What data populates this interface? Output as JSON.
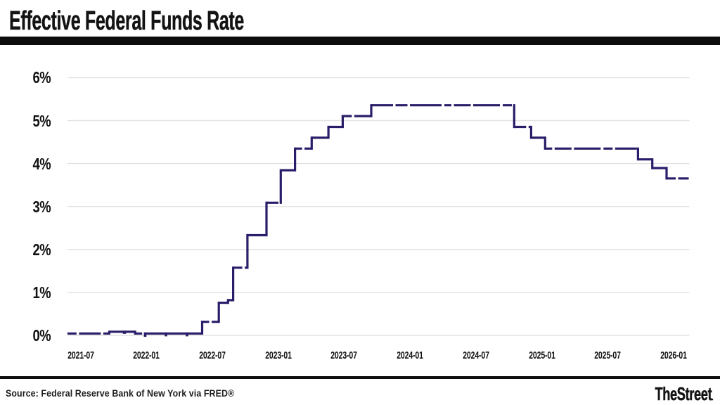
{
  "title": "Effective Federal Funds Rate",
  "footer": {
    "source": "Source: Federal Reserve Bank of New York via FRED®",
    "brand": "TheStreet",
    "brand_period": "."
  },
  "colors": {
    "line": "#2a1d6a",
    "grid": "#e1e1e1",
    "bars": "#0d0d0d",
    "text": "#111111"
  },
  "chart_data": {
    "type": "line",
    "step": true,
    "dash": true,
    "title": "Effective Federal Funds Rate",
    "xlabel": "",
    "ylabel": "",
    "unit": "percent",
    "ylim": [
      0,
      6
    ],
    "grid": "horizontal",
    "legend": "none",
    "y_ticks": [
      "0%",
      "1%",
      "2%",
      "3%",
      "4%",
      "5%",
      "6%"
    ],
    "y_tick_values": [
      0,
      1,
      2,
      3,
      4,
      5,
      6
    ],
    "x_ticks": [
      "2021-07",
      "2022-01",
      "2022-07",
      "2023-01",
      "2023-07",
      "2024-01",
      "2024-07",
      "2025-01",
      "2025-07",
      "2026-01"
    ],
    "series": [
      {
        "name": "Effective Federal Funds Rate",
        "step_points": [
          {
            "date": "2021-02-14",
            "value": 0.06
          },
          {
            "date": "2021-06-17",
            "value": 0.1
          },
          {
            "date": "2021-07-30",
            "value": 0.08
          },
          {
            "date": "2021-08-02",
            "value": 0.1
          },
          {
            "date": "2021-09-01",
            "value": 0.06
          },
          {
            "date": "2021-09-30",
            "value": 0.01
          },
          {
            "date": "2021-10-01",
            "value": 0.06
          },
          {
            "date": "2021-11-30",
            "value": 0.02
          },
          {
            "date": "2021-12-01",
            "value": 0.06
          },
          {
            "date": "2022-01-31",
            "value": 0.02
          },
          {
            "date": "2022-02-01",
            "value": 0.06
          },
          {
            "date": "2022-03-17",
            "value": 0.33
          },
          {
            "date": "2022-05-05",
            "value": 0.77
          },
          {
            "date": "2022-06-01",
            "value": 0.83
          },
          {
            "date": "2022-06-16",
            "value": 1.58
          },
          {
            "date": "2022-07-28",
            "value": 2.33
          },
          {
            "date": "2022-09-22",
            "value": 3.08
          },
          {
            "date": "2022-11-03",
            "value": 3.83
          },
          {
            "date": "2022-12-15",
            "value": 4.33
          },
          {
            "date": "2023-02-02",
            "value": 4.58
          },
          {
            "date": "2023-03-23",
            "value": 4.83
          },
          {
            "date": "2023-05-04",
            "value": 5.08
          },
          {
            "date": "2023-07-27",
            "value": 5.33
          },
          {
            "date": "2024-09-19",
            "value": 4.83
          },
          {
            "date": "2024-11-08",
            "value": 4.58
          },
          {
            "date": "2024-12-19",
            "value": 4.33
          },
          {
            "date": "2025-09-18",
            "value": 4.08
          },
          {
            "date": "2025-10-30",
            "value": 3.88
          },
          {
            "date": "2025-12-11",
            "value": 3.64
          },
          {
            "date": "2026-02-18",
            "value": 3.64
          }
        ]
      }
    ]
  }
}
